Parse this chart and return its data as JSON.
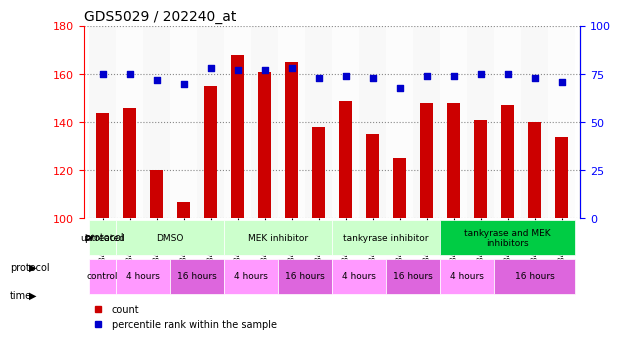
{
  "title": "GDS5029 / 202240_at",
  "samples": [
    "GSM1340521",
    "GSM1340522",
    "GSM1340523",
    "GSM1340524",
    "GSM1340531",
    "GSM1340532",
    "GSM1340527",
    "GSM1340528",
    "GSM1340535",
    "GSM1340536",
    "GSM1340525",
    "GSM1340526",
    "GSM1340533",
    "GSM1340534",
    "GSM1340529",
    "GSM1340530",
    "GSM1340537",
    "GSM1340538"
  ],
  "counts": [
    144,
    146,
    120,
    107,
    155,
    168,
    161,
    165,
    138,
    149,
    135,
    125,
    148,
    148,
    141,
    147,
    140,
    134
  ],
  "percentile": [
    75,
    75,
    72,
    70,
    78,
    77,
    77,
    78,
    73,
    74,
    73,
    68,
    74,
    74,
    75,
    75,
    73,
    71
  ],
  "ylim_left": [
    100,
    180
  ],
  "ylim_right": [
    0,
    100
  ],
  "yticks_left": [
    100,
    120,
    140,
    160,
    180
  ],
  "yticks_right": [
    0,
    25,
    50,
    75,
    100
  ],
  "bar_color": "#cc0000",
  "dot_color": "#0000cc",
  "protocol_row": [
    {
      "label": "untreated",
      "start": 0,
      "end": 1,
      "color": "#ccffcc"
    },
    {
      "label": "DMSO",
      "start": 1,
      "end": 5,
      "color": "#ccffcc"
    },
    {
      "label": "MEK inhibitor",
      "start": 5,
      "end": 9,
      "color": "#ccffcc"
    },
    {
      "label": "tankyrase inhibitor",
      "start": 9,
      "end": 13,
      "color": "#ccffcc"
    },
    {
      "label": "tankyrase and MEK\ninhibitors",
      "start": 13,
      "end": 18,
      "color": "#00cc44"
    }
  ],
  "time_row": [
    {
      "label": "control",
      "start": 0,
      "end": 1,
      "color": "#ff99ff"
    },
    {
      "label": "4 hours",
      "start": 1,
      "end": 3,
      "color": "#ff99ff"
    },
    {
      "label": "16 hours",
      "start": 3,
      "end": 5,
      "color": "#dd66dd"
    },
    {
      "label": "4 hours",
      "start": 5,
      "end": 7,
      "color": "#ff99ff"
    },
    {
      "label": "16 hours",
      "start": 7,
      "end": 9,
      "color": "#dd66dd"
    },
    {
      "label": "4 hours",
      "start": 9,
      "end": 11,
      "color": "#ff99ff"
    },
    {
      "label": "16 hours",
      "start": 11,
      "end": 13,
      "color": "#dd66dd"
    },
    {
      "label": "4 hours",
      "start": 13,
      "end": 15,
      "color": "#ff99ff"
    },
    {
      "label": "16 hours",
      "start": 15,
      "end": 18,
      "color": "#dd66dd"
    }
  ],
  "grid_color": "#888888",
  "bg_color": "#ffffff",
  "tick_bg": "#e0e0e0"
}
